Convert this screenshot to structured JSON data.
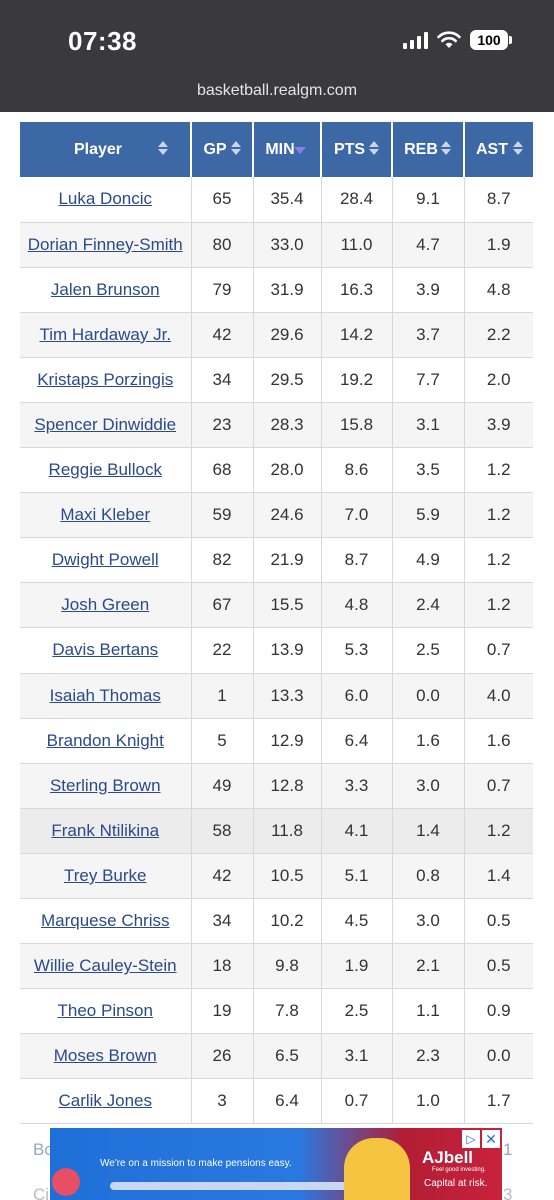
{
  "status_bar": {
    "time": "07:38",
    "battery": "100",
    "icons": [
      "signal-icon",
      "wifi-icon",
      "battery-icon"
    ]
  },
  "browser": {
    "url": "basketball.realgm.com"
  },
  "table": {
    "columns": [
      "Player",
      "GP",
      "MIN",
      "PTS",
      "REB",
      "AST"
    ],
    "active_sort": "MIN",
    "rows": [
      [
        "Luka Doncic",
        "65",
        "35.4",
        "28.4",
        "9.1",
        "8.7"
      ],
      [
        "Dorian Finney-Smith",
        "80",
        "33.0",
        "11.0",
        "4.7",
        "1.9"
      ],
      [
        "Jalen Brunson",
        "79",
        "31.9",
        "16.3",
        "3.9",
        "4.8"
      ],
      [
        "Tim Hardaway Jr.",
        "42",
        "29.6",
        "14.2",
        "3.7",
        "2.2"
      ],
      [
        "Kristaps Porzingis",
        "34",
        "29.5",
        "19.2",
        "7.7",
        "2.0"
      ],
      [
        "Spencer Dinwiddie",
        "23",
        "28.3",
        "15.8",
        "3.1",
        "3.9"
      ],
      [
        "Reggie Bullock",
        "68",
        "28.0",
        "8.6",
        "3.5",
        "1.2"
      ],
      [
        "Maxi Kleber",
        "59",
        "24.6",
        "7.0",
        "5.9",
        "1.2"
      ],
      [
        "Dwight Powell",
        "82",
        "21.9",
        "8.7",
        "4.9",
        "1.2"
      ],
      [
        "Josh Green",
        "67",
        "15.5",
        "4.8",
        "2.4",
        "1.2"
      ],
      [
        "Davis Bertans",
        "22",
        "13.9",
        "5.3",
        "2.5",
        "0.7"
      ],
      [
        "Isaiah Thomas",
        "1",
        "13.3",
        "6.0",
        "0.0",
        "4.0"
      ],
      [
        "Brandon Knight",
        "5",
        "12.9",
        "6.4",
        "1.6",
        "1.6"
      ],
      [
        "Sterling Brown",
        "49",
        "12.8",
        "3.3",
        "3.0",
        "0.7"
      ],
      [
        "Frank Ntilikina",
        "58",
        "11.8",
        "4.1",
        "1.4",
        "1.2"
      ],
      [
        "Trey Burke",
        "42",
        "10.5",
        "5.1",
        "0.8",
        "1.4"
      ],
      [
        "Marquese Chriss",
        "34",
        "10.2",
        "4.5",
        "3.0",
        "0.5"
      ],
      [
        "Willie Cauley-Stein",
        "18",
        "9.8",
        "1.9",
        "2.1",
        "0.5"
      ],
      [
        "Theo Pinson",
        "19",
        "7.8",
        "2.5",
        "1.1",
        "0.9"
      ],
      [
        "Moses Brown",
        "26",
        "6.5",
        "3.1",
        "2.3",
        "0.0"
      ],
      [
        "Carlik Jones",
        "3",
        "6.4",
        "0.7",
        "1.0",
        "1.7"
      ]
    ],
    "highlighted_row": 14
  },
  "ad": {
    "text": "We're on a mission to make pensions easy.",
    "brand": "AJbell",
    "brand_sub": "Feel good investing.",
    "risk": "Capital at risk.",
    "close": "✕",
    "info": "▷"
  },
  "behind_ad": {
    "left_1": "Bo",
    "right_1": "1",
    "left_2": "Ci",
    "right_2": "3"
  },
  "colors": {
    "header_bg": "#3d68a6",
    "link": "#2a4a8a",
    "topbar": "#3a3a3c",
    "sort_active": "#8a7ee0"
  }
}
